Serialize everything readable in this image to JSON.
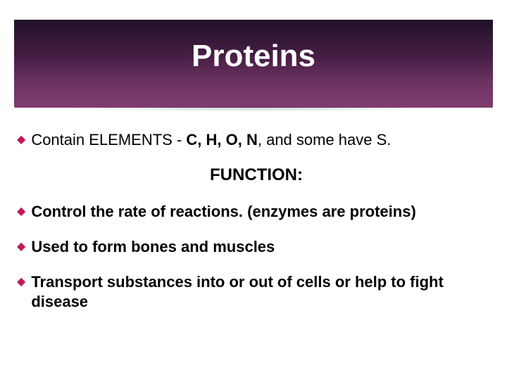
{
  "slide": {
    "title": "Proteins",
    "title_band_gradient": [
      "#1f1028",
      "#4a2048",
      "#6b3260",
      "#7e3d6f"
    ],
    "title_color": "#ffffff",
    "title_fontsize": 44,
    "bullet_marker_color": "#c2185b",
    "bullet_marker_glyph": "◆",
    "background_color": "#ffffff",
    "text_color": "#000000",
    "body_fontsize": 22,
    "subtitle_fontsize": 24,
    "bullets": [
      {
        "segments": [
          {
            "text": "Contain ",
            "bold": false
          },
          {
            "text": "ELEMENTS - ",
            "bold": false
          },
          {
            "text": "C, H, O, N",
            "bold": true
          },
          {
            "text": ", and some have S.",
            "bold": false
          }
        ]
      }
    ],
    "subtitle": "FUNCTION:",
    "function_bullets": [
      {
        "segments": [
          {
            "text": "Control",
            "bold": true
          },
          {
            "text": " the rate of reactions. (enzymes are proteins)",
            "bold": true
          }
        ]
      },
      {
        "segments": [
          {
            "text": "Used",
            "bold": true
          },
          {
            "text": " to form bones and muscles",
            "bold": true
          }
        ]
      },
      {
        "segments": [
          {
            "text": "Transport",
            "bold": true
          },
          {
            "text": " substances into or out of cells or help to fight disease",
            "bold": true
          }
        ]
      }
    ]
  }
}
